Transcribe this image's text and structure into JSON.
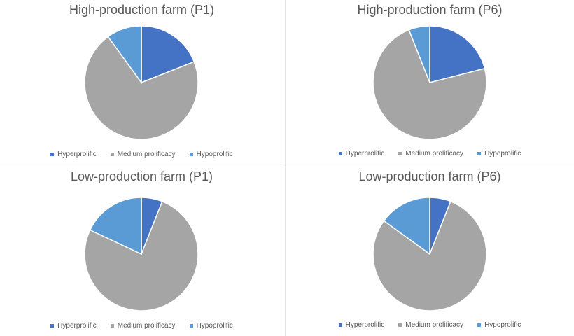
{
  "colors": {
    "Hyperprolific": "#4472c4",
    "Medium prolificacy": "#a5a5a5",
    "Hypoprolific": "#5b9bd5"
  },
  "chart_data": [
    {
      "type": "pie",
      "title": "High-production farm (P1)",
      "categories": [
        "Hyperprolific",
        "Medium prolificacy",
        "Hypoprolific"
      ],
      "values": [
        19,
        71,
        10
      ],
      "legend": "bottom"
    },
    {
      "type": "pie",
      "title": "High-production farm (P6)",
      "categories": [
        "Hyperprolific",
        "Medium prolificacy",
        "Hypoprolific"
      ],
      "values": [
        21,
        73,
        6
      ],
      "legend": "bottom"
    },
    {
      "type": "pie",
      "title": "Low-production farm (P1)",
      "categories": [
        "Hyperprolific",
        "Medium prolificacy",
        "Hypoprolific"
      ],
      "values": [
        6,
        76,
        18
      ],
      "legend": "bottom"
    },
    {
      "type": "pie",
      "title": "Low-production farm (P6)",
      "categories": [
        "Hyperprolific",
        "Medium prolificacy",
        "Hypoprolific"
      ],
      "values": [
        6,
        79,
        15
      ],
      "legend": "bottom"
    }
  ]
}
